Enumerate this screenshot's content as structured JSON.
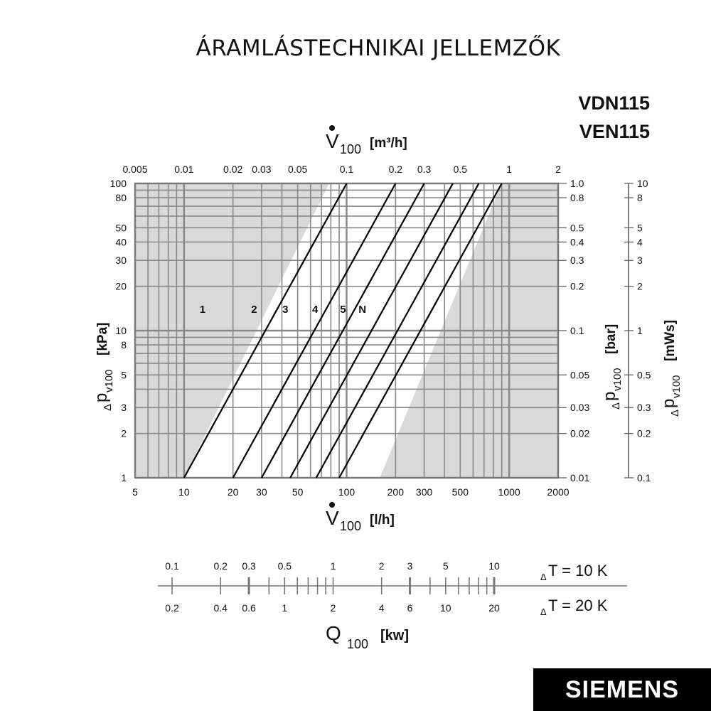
{
  "page": {
    "title": "ÁRAMLÁSTECHNIKAI JELLEMZŐK",
    "models": [
      "VDN115",
      "VEN115"
    ],
    "logo": "SIEMENS"
  },
  "chart_data": [
    {
      "type": "line",
      "scale": "log-log",
      "grid": true,
      "xlim": [
        5,
        2000
      ],
      "ylim": [
        1,
        100
      ],
      "xlabel_bottom": {
        "symbol": "V",
        "subscript": "100",
        "unit": "[l/h]"
      },
      "xlabel_top": {
        "symbol": "V",
        "subscript": "100",
        "unit": "[m³/h]"
      },
      "ylabel_left": {
        "prefix": "Δ",
        "symbol": "p",
        "subscript": "v100",
        "unit": "[kPa]"
      },
      "ylabel_right_1": {
        "prefix": "Δ",
        "symbol": "p",
        "subscript": "v100",
        "unit": "[bar]"
      },
      "ylabel_right_2": {
        "prefix": "Δ",
        "symbol": "p",
        "subscript": "v100",
        "unit": "[mWs]"
      },
      "x_ticks_bottom": [
        {
          "v": 5,
          "t": "5"
        },
        {
          "v": 10,
          "t": "10"
        },
        {
          "v": 20,
          "t": "20"
        },
        {
          "v": 30,
          "t": "30"
        },
        {
          "v": 50,
          "t": "50"
        },
        {
          "v": 100,
          "t": "100"
        },
        {
          "v": 200,
          "t": "200"
        },
        {
          "v": 300,
          "t": "300"
        },
        {
          "v": 500,
          "t": "500"
        },
        {
          "v": 1000,
          "t": "1000"
        },
        {
          "v": 2000,
          "t": "2000"
        }
      ],
      "x_ticks_top": [
        {
          "v": 5,
          "t": "0.005"
        },
        {
          "v": 10,
          "t": "0.01"
        },
        {
          "v": 20,
          "t": "0.02"
        },
        {
          "v": 30,
          "t": "0.03"
        },
        {
          "v": 50,
          "t": "0.05"
        },
        {
          "v": 100,
          "t": "0.1"
        },
        {
          "v": 200,
          "t": "0.2"
        },
        {
          "v": 300,
          "t": "0.3"
        },
        {
          "v": 500,
          "t": "0.5"
        },
        {
          "v": 1000,
          "t": "1"
        },
        {
          "v": 2000,
          "t": "2"
        }
      ],
      "y_ticks_left": [
        {
          "v": 1,
          "t": "1"
        },
        {
          "v": 2,
          "t": "2"
        },
        {
          "v": 3,
          "t": "3"
        },
        {
          "v": 5,
          "t": "5"
        },
        {
          "v": 8,
          "t": "8"
        },
        {
          "v": 10,
          "t": "10"
        },
        {
          "v": 20,
          "t": "20"
        },
        {
          "v": 30,
          "t": "30"
        },
        {
          "v": 40,
          "t": "40"
        },
        {
          "v": 50,
          "t": "50"
        },
        {
          "v": 80,
          "t": "80"
        },
        {
          "v": 100,
          "t": "100"
        }
      ],
      "y_ticks_bar": [
        {
          "v": 1,
          "t": "0.01"
        },
        {
          "v": 2,
          "t": "0.02"
        },
        {
          "v": 3,
          "t": "0.03"
        },
        {
          "v": 5,
          "t": "0.05"
        },
        {
          "v": 10,
          "t": "0.1"
        },
        {
          "v": 20,
          "t": "0.2"
        },
        {
          "v": 30,
          "t": "0.3"
        },
        {
          "v": 40,
          "t": "0.4"
        },
        {
          "v": 50,
          "t": "0.5"
        },
        {
          "v": 80,
          "t": "0.8"
        },
        {
          "v": 100,
          "t": "1.0"
        }
      ],
      "y_ticks_mws": [
        {
          "v": 1,
          "t": "0.1"
        },
        {
          "v": 2,
          "t": "0.2"
        },
        {
          "v": 3,
          "t": "0.3"
        },
        {
          "v": 5,
          "t": "0.5"
        },
        {
          "v": 10,
          "t": "1"
        },
        {
          "v": 20,
          "t": "2"
        },
        {
          "v": 30,
          "t": "3"
        },
        {
          "v": 40,
          "t": "4"
        },
        {
          "v": 50,
          "t": "5"
        },
        {
          "v": 80,
          "t": "8"
        },
        {
          "v": 100,
          "t": "10"
        }
      ],
      "grid_x": [
        5,
        6,
        7,
        8,
        9,
        10,
        20,
        30,
        40,
        50,
        60,
        70,
        80,
        90,
        100,
        200,
        300,
        400,
        500,
        600,
        700,
        800,
        900,
        1000,
        2000
      ],
      "grid_y": [
        1,
        2,
        3,
        4,
        5,
        6,
        7,
        8,
        9,
        10,
        20,
        30,
        40,
        50,
        60,
        70,
        80,
        90,
        100
      ],
      "shaded_region": {
        "upper_left": [
          [
            10,
            1
          ],
          [
            78,
            100
          ]
        ],
        "lower_right": [
          [
            160,
            1
          ],
          [
            900,
            100
          ]
        ]
      },
      "series": [
        {
          "name": "1",
          "x": [
            10,
            100
          ],
          "y": [
            1,
            100
          ],
          "label_at": [
            13,
            14
          ]
        },
        {
          "name": "2",
          "x": [
            20,
            200
          ],
          "y": [
            1,
            100
          ],
          "label_at": [
            27,
            14
          ]
        },
        {
          "name": "3",
          "x": [
            30,
            300
          ],
          "y": [
            1,
            100
          ],
          "label_at": [
            42,
            14
          ]
        },
        {
          "name": "4",
          "x": [
            45,
            450
          ],
          "y": [
            1,
            100
          ],
          "label_at": [
            64,
            14
          ]
        },
        {
          "name": "5",
          "x": [
            65,
            650
          ],
          "y": [
            1,
            100
          ],
          "label_at": [
            95,
            14
          ]
        },
        {
          "name": "N",
          "x": [
            90,
            900
          ],
          "y": [
            1,
            100
          ],
          "label_at": [
            125,
            14
          ]
        }
      ]
    },
    {
      "type": "scale",
      "xlabel": {
        "symbol": "Q",
        "subscript": "100",
        "unit": "[kw]"
      },
      "rows": [
        {
          "name": "T = 10 K",
          "prefix": "Δ",
          "ticks": [
            {
              "v": 0.1,
              "t": "0.1"
            },
            {
              "v": 0.2,
              "t": "0.2"
            },
            {
              "v": 0.3,
              "t": "0.3"
            },
            {
              "v": 0.5,
              "t": "0.5"
            },
            {
              "v": 1,
              "t": "1"
            },
            {
              "v": 2,
              "t": "2"
            },
            {
              "v": 3,
              "t": "3"
            },
            {
              "v": 5,
              "t": "5"
            },
            {
              "v": 10,
              "t": "10"
            }
          ]
        },
        {
          "name": "T = 20 K",
          "prefix": "Δ",
          "ticks": [
            {
              "v": 0.1,
              "t": "0.2"
            },
            {
              "v": 0.2,
              "t": "0.4"
            },
            {
              "v": 0.3,
              "t": "0.6"
            },
            {
              "v": 0.5,
              "t": "1"
            },
            {
              "v": 1,
              "t": "2"
            },
            {
              "v": 2,
              "t": "4"
            },
            {
              "v": 3,
              "t": "6"
            },
            {
              "v": 5,
              "t": "10"
            },
            {
              "v": 10,
              "t": "20"
            }
          ]
        }
      ],
      "minor_ticks": [
        0.1,
        0.2,
        0.3,
        0.4,
        0.5,
        0.6,
        0.7,
        0.8,
        0.9,
        1,
        2,
        3,
        4,
        5,
        6,
        7,
        8,
        9,
        10
      ],
      "bold_ticks": [
        0.3,
        3,
        10
      ]
    }
  ]
}
